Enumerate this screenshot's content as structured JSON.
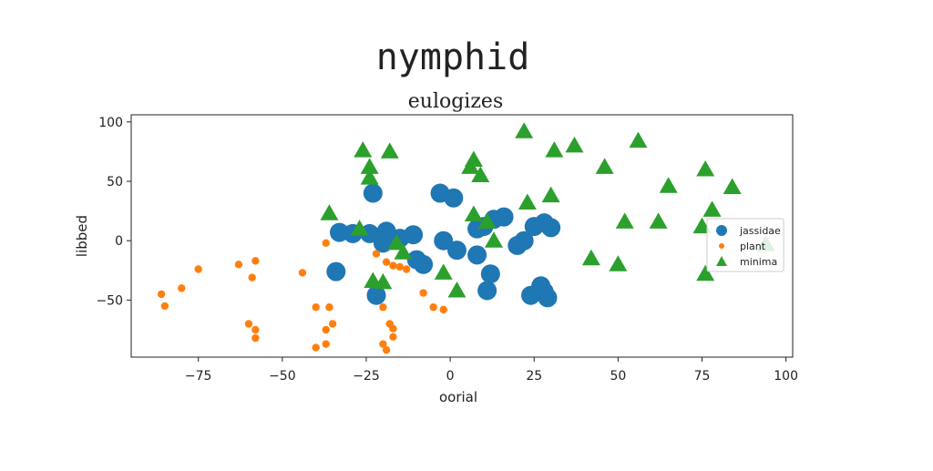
{
  "chart_data": {
    "type": "scatter",
    "title": "nymphid",
    "subtitle": "eulogizes",
    "xlabel": "oorial",
    "ylabel": "libbed",
    "xlim": [
      -95,
      102
    ],
    "ylim": [
      -98,
      106
    ],
    "xticks": [
      -75,
      -50,
      -25,
      0,
      25,
      50,
      75,
      100
    ],
    "xtick_labels": [
      "−75",
      "−50",
      "−25",
      "0",
      "25",
      "50",
      "75",
      "100"
    ],
    "yticks": [
      -50,
      0,
      50,
      100
    ],
    "ytick_labels": [
      "−50",
      "0",
      "50",
      "100"
    ],
    "legend_position": "right",
    "series": [
      {
        "name": "jassidae",
        "marker": "circle-large",
        "color": "#1f77b4",
        "points": [
          [
            -23,
            40
          ],
          [
            -33,
            7
          ],
          [
            -29,
            6
          ],
          [
            -24,
            6
          ],
          [
            -19,
            8
          ],
          [
            -18,
            3
          ],
          [
            -15,
            2
          ],
          [
            -11,
            5
          ],
          [
            -10,
            -16
          ],
          [
            -8,
            -20
          ],
          [
            -34,
            -26
          ],
          [
            -22,
            -46
          ],
          [
            -20,
            -2
          ],
          [
            -3,
            40
          ],
          [
            1,
            36
          ],
          [
            -2,
            0
          ],
          [
            2,
            -8
          ],
          [
            8,
            10
          ],
          [
            10,
            12
          ],
          [
            13,
            18
          ],
          [
            16,
            20
          ],
          [
            20,
            -4
          ],
          [
            22,
            0
          ],
          [
            25,
            12
          ],
          [
            28,
            15
          ],
          [
            30,
            11
          ],
          [
            8,
            -12
          ],
          [
            12,
            -28
          ],
          [
            11,
            -42
          ],
          [
            27,
            -38
          ],
          [
            28,
            -43
          ],
          [
            29,
            -48
          ],
          [
            24,
            -46
          ]
        ]
      },
      {
        "name": "plant",
        "marker": "circle-small",
        "color": "#ff7f0e",
        "points": [
          [
            -86,
            -45
          ],
          [
            -85,
            -55
          ],
          [
            -80,
            -40
          ],
          [
            -75,
            -24
          ],
          [
            -63,
            -20
          ],
          [
            -58,
            -17
          ],
          [
            -59,
            -31
          ],
          [
            -60,
            -70
          ],
          [
            -58,
            -75
          ],
          [
            -58,
            -82
          ],
          [
            -44,
            -27
          ],
          [
            -40,
            -56
          ],
          [
            -36,
            -56
          ],
          [
            -37,
            -2
          ],
          [
            -37,
            -75
          ],
          [
            -35,
            -70
          ],
          [
            -37,
            -87
          ],
          [
            -40,
            -90
          ],
          [
            -22,
            -11
          ],
          [
            -19,
            -18
          ],
          [
            -17,
            -21
          ],
          [
            -15,
            -22
          ],
          [
            -13,
            -24
          ],
          [
            -20,
            -56
          ],
          [
            -18,
            -70
          ],
          [
            -17,
            -74
          ],
          [
            -17,
            -81
          ],
          [
            -20,
            -87
          ],
          [
            -19,
            -92
          ],
          [
            -8,
            -44
          ],
          [
            -5,
            -56
          ],
          [
            -2,
            -58
          ]
        ]
      },
      {
        "name": "minima",
        "marker": "triangle",
        "color": "#2ca02c",
        "points": [
          [
            -26,
            76
          ],
          [
            -18,
            75
          ],
          [
            -24,
            62
          ],
          [
            -24,
            53
          ],
          [
            -36,
            23
          ],
          [
            -27,
            10
          ],
          [
            -16,
            -2
          ],
          [
            -14,
            -10
          ],
          [
            -23,
            -34
          ],
          [
            -20,
            -35
          ],
          [
            -2,
            -27
          ],
          [
            2,
            -42
          ],
          [
            7,
            68
          ],
          [
            6,
            62
          ],
          [
            9,
            55
          ],
          [
            7,
            22
          ],
          [
            11,
            16
          ],
          [
            13,
            0
          ],
          [
            22,
            92
          ],
          [
            31,
            76
          ],
          [
            37,
            80
          ],
          [
            30,
            38
          ],
          [
            23,
            32
          ],
          [
            46,
            62
          ],
          [
            56,
            84
          ],
          [
            65,
            46
          ],
          [
            76,
            60
          ],
          [
            78,
            26
          ],
          [
            84,
            45
          ],
          [
            52,
            16
          ],
          [
            62,
            16
          ],
          [
            75,
            12
          ],
          [
            42,
            -15
          ],
          [
            50,
            -20
          ],
          [
            76,
            -28
          ],
          [
            94,
            -3
          ]
        ]
      }
    ]
  }
}
